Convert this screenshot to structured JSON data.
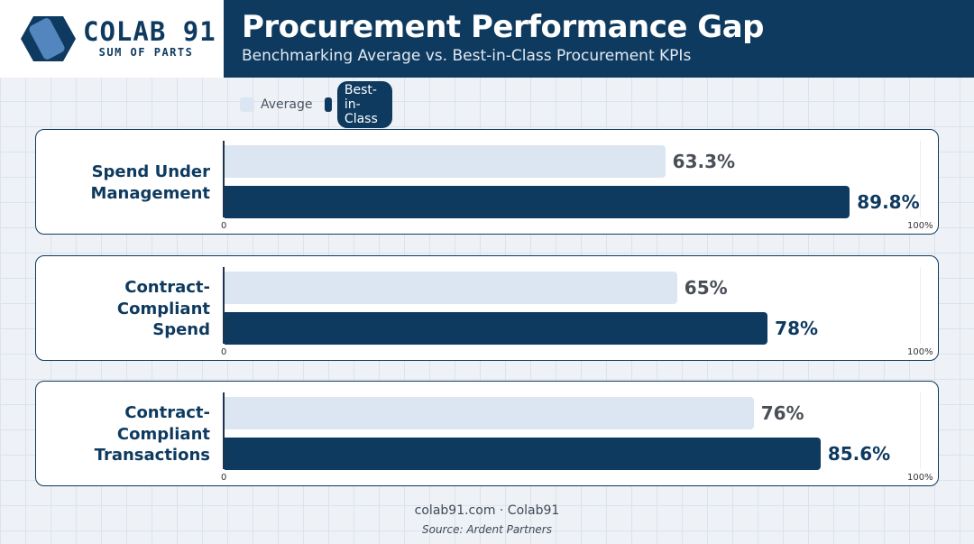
{
  "header": {
    "logo_name": "COLAB 91",
    "logo_tagline": "SUM OF PARTS",
    "title": "Procurement Performance Gap",
    "subtitle": "Benchmarking Average vs. Best-in-Class Procurement KPIs"
  },
  "legend": {
    "average": "Average",
    "best": "Best-in-Class"
  },
  "colors": {
    "average": "#dce6f2",
    "best": "#0e3a5f",
    "brand": "#0e3a5f"
  },
  "chart_data": {
    "type": "bar",
    "orientation": "horizontal",
    "title": "Procurement Performance Gap",
    "subtitle": "Benchmarking Average vs. Best-in-Class Procurement KPIs",
    "categories": [
      [
        "Spend Under",
        "Management"
      ],
      [
        "Contract-Compliant",
        "Spend"
      ],
      [
        "Contract-Compliant",
        "Transactions"
      ]
    ],
    "series": [
      {
        "name": "Average",
        "values": [
          63.3,
          65,
          76
        ],
        "labels": [
          "63.3%",
          "65%",
          "76%"
        ]
      },
      {
        "name": "Best-in-Class",
        "values": [
          89.8,
          78,
          85.6
        ],
        "labels": [
          "89.8%",
          "78%",
          "85.6%"
        ]
      }
    ],
    "xlim": [
      0,
      100
    ],
    "ticks": [
      "0",
      "100%"
    ],
    "grid": false,
    "legend_position": "top-left"
  },
  "footer": {
    "credit": "colab91.com · Colab91",
    "source": "Source: Ardent Partners"
  }
}
